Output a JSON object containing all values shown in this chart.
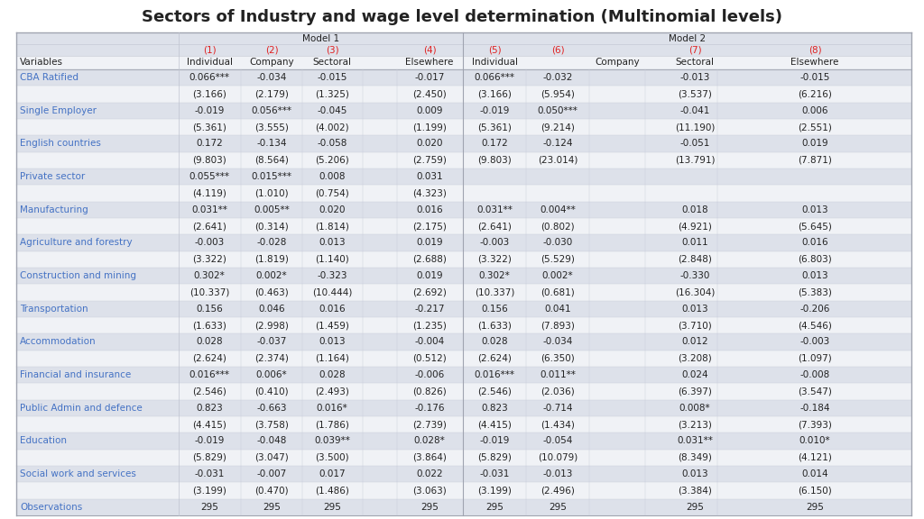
{
  "title": "Sectors of Industry and wage level determination (Multinomial levels)",
  "model1_label": "Model 1",
  "model2_label": "Model 2",
  "bg_overall": "#E8EBF0",
  "row_bg_light": "#DDE1EA",
  "row_bg_white": "#F0F2F6",
  "text_blue": "#4472C4",
  "text_black": "#222222",
  "text_red": "#E02020",
  "border_color": "#B0B4C0",
  "col_nums": [
    "(1)",
    "(2)",
    "(3)",
    "(4)",
    "(5)",
    "(6)",
    "(7)",
    "(8)"
  ],
  "col_names_m1": [
    "Individual",
    "Company",
    "Sectoral",
    "Elsewhere"
  ],
  "col_names_m2": [
    "Individual",
    "",
    "Company",
    "Sectoral",
    "Elsewhere"
  ],
  "rows": [
    {
      "label": "CBA Ratified",
      "blue": true,
      "is_label": true,
      "c1": "0.066***",
      "c2": "-0.034",
      "c3": "-0.015",
      "c4": "-0.017",
      "c5": "0.066***",
      "c6": "-0.032",
      "c7": "",
      "c8": "-0.013",
      "c9": "-0.015"
    },
    {
      "label": "",
      "blue": false,
      "is_label": false,
      "c1": "(3.166)",
      "c2": "(2.179)",
      "c3": "(1.325)",
      "c4": "(2.450)",
      "c5": "(3.166)",
      "c6": "(5.954)",
      "c7": "",
      "c8": "(3.537)",
      "c9": "(6.216)"
    },
    {
      "label": "Single Employer",
      "blue": true,
      "is_label": true,
      "c1": "-0.019",
      "c2": "0.056***",
      "c3": "-0.045",
      "c4": "0.009",
      "c5": "-0.019",
      "c6": "0.050***",
      "c7": "",
      "c8": "-0.041",
      "c9": "0.006"
    },
    {
      "label": "",
      "blue": false,
      "is_label": false,
      "c1": "(5.361)",
      "c2": "(3.555)",
      "c3": "(4.002)",
      "c4": "(1.199)",
      "c5": "(5.361)",
      "c6": "(9.214)",
      "c7": "",
      "c8": "(11.190)",
      "c9": "(2.551)"
    },
    {
      "label": "English countries",
      "blue": true,
      "is_label": true,
      "c1": "0.172",
      "c2": "-0.134",
      "c3": "-0.058",
      "c4": "0.020",
      "c5": "0.172",
      "c6": "-0.124",
      "c7": "",
      "c8": "-0.051",
      "c9": "0.019"
    },
    {
      "label": "",
      "blue": false,
      "is_label": false,
      "c1": "(9.803)",
      "c2": "(8.564)",
      "c3": "(5.206)",
      "c4": "(2.759)",
      "c5": "(9.803)",
      "c6": "(23.014)",
      "c7": "",
      "c8": "(13.791)",
      "c9": "(7.871)"
    },
    {
      "label": "Private sector",
      "blue": true,
      "is_label": true,
      "c1": "0.055***",
      "c2": "0.015***",
      "c3": "0.008",
      "c4": "0.031",
      "c5": "",
      "c6": "",
      "c7": "",
      "c8": "",
      "c9": ""
    },
    {
      "label": "",
      "blue": false,
      "is_label": false,
      "c1": "(4.119)",
      "c2": "(1.010)",
      "c3": "(0.754)",
      "c4": "(4.323)",
      "c5": "",
      "c6": "",
      "c7": "",
      "c8": "",
      "c9": ""
    },
    {
      "label": "Manufacturing",
      "blue": true,
      "is_label": true,
      "c1": "0.031**",
      "c2": "0.005**",
      "c3": "0.020",
      "c4": "0.016",
      "c5": "0.031**",
      "c6": "0.004**",
      "c7": "",
      "c8": "0.018",
      "c9": "0.013"
    },
    {
      "label": "",
      "blue": false,
      "is_label": false,
      "c1": "(2.641)",
      "c2": "(0.314)",
      "c3": "(1.814)",
      "c4": "(2.175)",
      "c5": "(2.641)",
      "c6": "(0.802)",
      "c7": "",
      "c8": "(4.921)",
      "c9": "(5.645)"
    },
    {
      "label": "Agriculture and forestry",
      "blue": true,
      "is_label": true,
      "c1": "-0.003",
      "c2": "-0.028",
      "c3": "0.013",
      "c4": "0.019",
      "c5": "-0.003",
      "c6": "-0.030",
      "c7": "",
      "c8": "0.011",
      "c9": "0.016"
    },
    {
      "label": "",
      "blue": false,
      "is_label": false,
      "c1": "(3.322)",
      "c2": "(1.819)",
      "c3": "(1.140)",
      "c4": "(2.688)",
      "c5": "(3.322)",
      "c6": "(5.529)",
      "c7": "",
      "c8": "(2.848)",
      "c9": "(6.803)"
    },
    {
      "label": "Construction and mining",
      "blue": true,
      "is_label": true,
      "c1": "0.302*",
      "c2": "0.002*",
      "c3": "-0.323",
      "c4": "0.019",
      "c5": "0.302*",
      "c6": "0.002*",
      "c7": "",
      "c8": "-0.330",
      "c9": "0.013"
    },
    {
      "label": "",
      "blue": false,
      "is_label": false,
      "c1": "(10.337)",
      "c2": "(0.463)",
      "c3": "(10.444)",
      "c4": "(2.692)",
      "c5": "(10.337)",
      "c6": "(0.681)",
      "c7": "",
      "c8": "(16.304)",
      "c9": "(5.383)"
    },
    {
      "label": "Transportation",
      "blue": true,
      "is_label": true,
      "c1": "0.156",
      "c2": "0.046",
      "c3": "0.016",
      "c4": "-0.217",
      "c5": "0.156",
      "c6": "0.041",
      "c7": "",
      "c8": "0.013",
      "c9": "-0.206"
    },
    {
      "label": "",
      "blue": false,
      "is_label": false,
      "c1": "(1.633)",
      "c2": "(2.998)",
      "c3": "(1.459)",
      "c4": "(1.235)",
      "c5": "(1.633)",
      "c6": "(7.893)",
      "c7": "",
      "c8": "(3.710)",
      "c9": "(4.546)"
    },
    {
      "label": "Accommodation",
      "blue": true,
      "is_label": true,
      "c1": "0.028",
      "c2": "-0.037",
      "c3": "0.013",
      "c4": "-0.004",
      "c5": "0.028",
      "c6": "-0.034",
      "c7": "",
      "c8": "0.012",
      "c9": "-0.003"
    },
    {
      "label": "",
      "blue": false,
      "is_label": false,
      "c1": "(2.624)",
      "c2": "(2.374)",
      "c3": "(1.164)",
      "c4": "(0.512)",
      "c5": "(2.624)",
      "c6": "(6.350)",
      "c7": "",
      "c8": "(3.208)",
      "c9": "(1.097)"
    },
    {
      "label": "Financial and insurance",
      "blue": true,
      "is_label": true,
      "c1": "0.016***",
      "c2": "0.006*",
      "c3": "0.028",
      "c4": "-0.006",
      "c5": "0.016***",
      "c6": "0.011**",
      "c7": "",
      "c8": "0.024",
      "c9": "-0.008"
    },
    {
      "label": "",
      "blue": false,
      "is_label": false,
      "c1": "(2.546)",
      "c2": "(0.410)",
      "c3": "(2.493)",
      "c4": "(0.826)",
      "c5": "(2.546)",
      "c6": "(2.036)",
      "c7": "",
      "c8": "(6.397)",
      "c9": "(3.547)"
    },
    {
      "label": "Public Admin and defence",
      "blue": true,
      "is_label": true,
      "c1": "0.823",
      "c2": "-0.663",
      "c3": "0.016*",
      "c4": "-0.176",
      "c5": "0.823",
      "c6": "-0.714",
      "c7": "",
      "c8": "0.008*",
      "c9": "-0.184"
    },
    {
      "label": "",
      "blue": false,
      "is_label": false,
      "c1": "(4.415)",
      "c2": "(3.758)",
      "c3": "(1.786)",
      "c4": "(2.739)",
      "c5": "(4.415)",
      "c6": "(1.434)",
      "c7": "",
      "c8": "(3.213)",
      "c9": "(7.393)"
    },
    {
      "label": "Education",
      "blue": true,
      "is_label": true,
      "c1": "-0.019",
      "c2": "-0.048",
      "c3": "0.039**",
      "c4": "0.028*",
      "c5": "-0.019",
      "c6": "-0.054",
      "c7": "",
      "c8": "0.031**",
      "c9": "0.010*"
    },
    {
      "label": "",
      "blue": false,
      "is_label": false,
      "c1": "(5.829)",
      "c2": "(3.047)",
      "c3": "(3.500)",
      "c4": "(3.864)",
      "c5": "(5.829)",
      "c6": "(10.079)",
      "c7": "",
      "c8": "(8.349)",
      "c9": "(4.121)"
    },
    {
      "label": "Social work and services",
      "blue": true,
      "is_label": true,
      "c1": "-0.031",
      "c2": "-0.007",
      "c3": "0.017",
      "c4": "0.022",
      "c5": "-0.031",
      "c6": "-0.013",
      "c7": "",
      "c8": "0.013",
      "c9": "0.014"
    },
    {
      "label": "",
      "blue": false,
      "is_label": false,
      "c1": "(3.199)",
      "c2": "(0.470)",
      "c3": "(1.486)",
      "c4": "(3.063)",
      "c5": "(3.199)",
      "c6": "(2.496)",
      "c7": "",
      "c8": "(3.384)",
      "c9": "(6.150)"
    },
    {
      "label": "Observations",
      "blue": true,
      "is_label": true,
      "c1": "295",
      "c2": "295",
      "c3": "295",
      "c4": "295",
      "c5": "295",
      "c6": "295",
      "c7": "",
      "c8": "295",
      "c9": "295"
    }
  ]
}
